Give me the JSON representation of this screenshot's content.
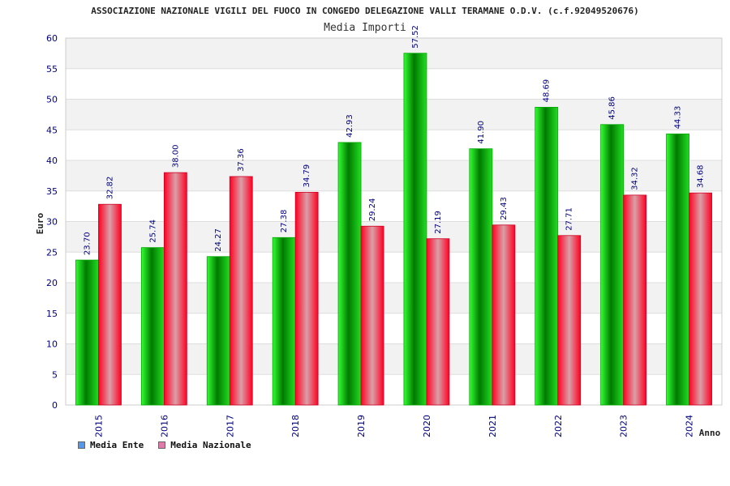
{
  "chart_data": {
    "type": "bar",
    "title": "ASSOCIAZIONE NAZIONALE VIGILI DEL FUOCO IN CONGEDO DELEGAZIONE VALLI TERAMANE O.D.V. (c.f.92049520676)",
    "subtitle": "Media Importi",
    "xlabel": "Anno",
    "ylabel": "Euro",
    "ylim": [
      0,
      60
    ],
    "ytick_step": 5,
    "grid": true,
    "categories": [
      "2015",
      "2016",
      "2017",
      "2018",
      "2019",
      "2020",
      "2021",
      "2022",
      "2023",
      "2024"
    ],
    "series": [
      {
        "name": "Media Ente",
        "values": [
          23.7,
          25.74,
          24.27,
          27.38,
          42.93,
          57.52,
          41.9,
          48.69,
          45.86,
          44.33
        ],
        "labels": [
          "23.70",
          "25.74",
          "24.27",
          "27.38",
          "42.93",
          "57.52",
          "41.90",
          "48.69",
          "45.86",
          "44.33"
        ]
      },
      {
        "name": "Media Nazionale",
        "values": [
          32.82,
          38.0,
          37.36,
          34.79,
          29.24,
          27.19,
          29.43,
          27.71,
          34.32,
          34.68
        ],
        "labels": [
          "32.82",
          "38.00",
          "37.36",
          "34.79",
          "29.24",
          "27.19",
          "29.43",
          "27.71",
          "34.32",
          "34.68"
        ]
      }
    ],
    "legend_position": "bottom-left"
  },
  "legend": {
    "items": [
      {
        "label": "Media Ente",
        "color": "#5599ee"
      },
      {
        "label": "Media Nazionale",
        "color": "#e07aa8"
      }
    ]
  },
  "colors": {
    "ente_dark": "#007a00",
    "ente_light": "#33ff33",
    "naz_dark": "#e8001c",
    "naz_light": "#d9a0a8",
    "axis_text": "#000080",
    "band": "#f2f2f2"
  }
}
